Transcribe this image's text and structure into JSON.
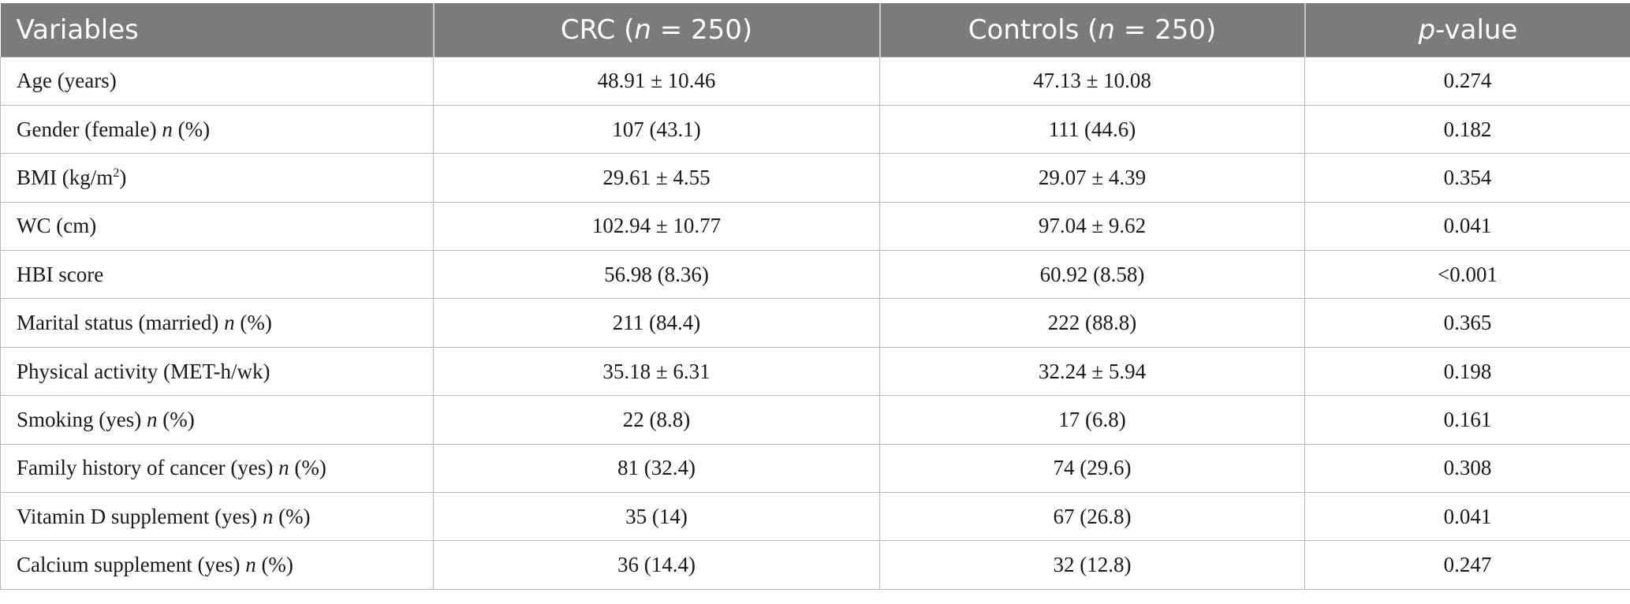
{
  "table": {
    "headers": {
      "variables": "Variables",
      "crc": {
        "prefix": "CRC (",
        "n": "n",
        "suffix": " = 250)"
      },
      "controls": {
        "prefix": "Controls (",
        "n": "n",
        "suffix": " = 250)"
      },
      "pvalue": {
        "p": "p",
        "suffix": "-value"
      }
    },
    "rows": [
      {
        "variable": "Age (years)",
        "crc": "48.91 ± 10.46",
        "controls": "47.13 ± 10.08",
        "p": "0.274"
      },
      {
        "variable": "Gender (female) ",
        "var_n": "n",
        "var_suffix": " (%)",
        "crc": "107 (43.1)",
        "controls": "111 (44.6)",
        "p": "0.182"
      },
      {
        "variable": "BMI (kg/m",
        "var_sup": "2",
        "var_suffix": ")",
        "crc": "29.61 ± 4.55",
        "controls": "29.07 ± 4.39",
        "p": "0.354"
      },
      {
        "variable": "WC (cm)",
        "crc": "102.94 ± 10.77",
        "controls": "97.04 ± 9.62",
        "p": "0.041"
      },
      {
        "variable": "HBI score",
        "crc": "56.98 (8.36)",
        "controls": "60.92 (8.58)",
        "p": "<0.001"
      },
      {
        "variable": "Marital status (married) ",
        "var_n": "n",
        "var_suffix": " (%)",
        "crc": "211 (84.4)",
        "controls": "222 (88.8)",
        "p": "0.365"
      },
      {
        "variable": "Physical activity (MET-h/wk)",
        "crc": "35.18 ± 6.31",
        "controls": "32.24 ± 5.94",
        "p": "0.198"
      },
      {
        "variable": "Smoking (yes) ",
        "var_n": "n",
        "var_suffix": " (%)",
        "crc": "22 (8.8)",
        "controls": "17 (6.8)",
        "p": "0.161"
      },
      {
        "variable": "Family history of cancer (yes) ",
        "var_n": "n",
        "var_suffix": " (%)",
        "crc": "81 (32.4)",
        "controls": "74 (29.6)",
        "p": "0.308"
      },
      {
        "variable": "Vitamin D supplement (yes) ",
        "var_n": "n",
        "var_suffix": " (%)",
        "crc": "35 (14)",
        "controls": "67 (26.8)",
        "p": "0.041"
      },
      {
        "variable": "Calcium supplement (yes) ",
        "var_n": "n",
        "var_suffix": " (%)",
        "crc": "36 (14.4)",
        "controls": "32 (12.8)",
        "p": "0.247"
      }
    ]
  },
  "colors": {
    "header_bg": "#7a7b7a",
    "header_text": "#ffffff",
    "grid": "#b9b9b9"
  }
}
